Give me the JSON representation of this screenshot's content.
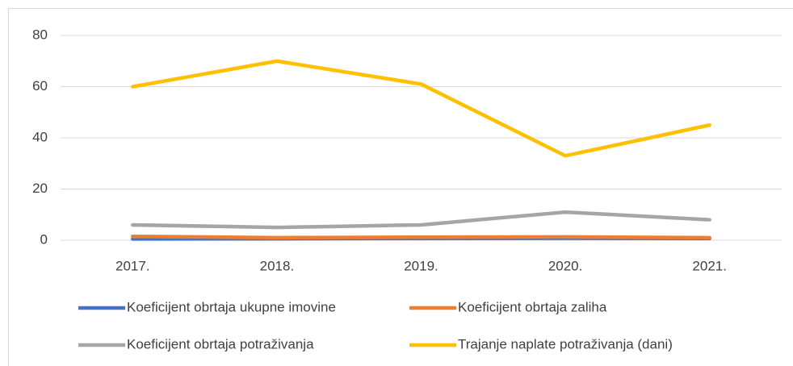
{
  "chart_data": {
    "type": "line",
    "categories": [
      "2017.",
      "2018.",
      "2019.",
      "2020.",
      "2021."
    ],
    "series": [
      {
        "name": "Koeficijent obrtaja ukupne imovine",
        "color": "#4472c4",
        "values": [
          0.5,
          0.6,
          0.7,
          0.8,
          0.7
        ]
      },
      {
        "name": "Koeficijent obrtaja zaliha",
        "color": "#ed7d31",
        "values": [
          1.5,
          1,
          1.2,
          1.3,
          1
        ]
      },
      {
        "name": "Koeficijent obrtaja potraživanja",
        "color": "#a5a5a5",
        "values": [
          6,
          5,
          6,
          11,
          8
        ]
      },
      {
        "name": "Trajanje naplate potraživanja (dani)",
        "color": "#ffc000",
        "values": [
          60,
          70,
          61,
          33,
          45
        ]
      }
    ],
    "ylim": [
      0,
      80
    ],
    "yticks": [
      0,
      20,
      40,
      60,
      80
    ],
    "grid": true,
    "legend": "bottom"
  }
}
